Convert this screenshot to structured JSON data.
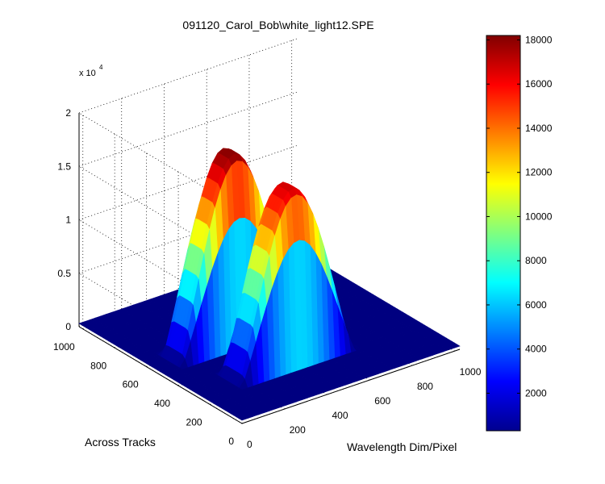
{
  "chart_data": {
    "type": "surface3d",
    "title": "091120_Carol_Bob\\white_light12.SPE",
    "xlabel": "Wavelength Dim/Pixel",
    "ylabel": "Across Tracks",
    "zlabel": "",
    "z_multiplier_label": "x 10",
    "z_multiplier_exp": "4",
    "xlim": [
      0,
      1024
    ],
    "ylim": [
      0,
      1024
    ],
    "zlim": [
      0,
      20000
    ],
    "x_ticks": [
      "0",
      "200",
      "400",
      "600",
      "800",
      "1000"
    ],
    "y_ticks": [
      "0",
      "200",
      "400",
      "600",
      "800",
      "1000"
    ],
    "z_ticks": [
      "0",
      "0.5",
      "1",
      "1.5",
      "2"
    ],
    "grid": true,
    "colormap": "jet",
    "colorbar": {
      "range": [
        300,
        18200
      ],
      "ticks": [
        "2000",
        "4000",
        "6000",
        "8000",
        "10000",
        "12000",
        "14000",
        "16000",
        "18000"
      ]
    },
    "peaks": [
      {
        "y_center": 560,
        "x_center": 360,
        "height": 17800,
        "y_half_width": 75,
        "x_sigma": 200
      },
      {
        "y_center": 290,
        "x_center": 430,
        "height": 16500,
        "y_half_width": 80,
        "x_sigma": 195
      }
    ],
    "baseline": 300
  },
  "colors": {
    "jet_low": "#00008F",
    "jet_high": "#800000",
    "axes": "#000000",
    "grid": "#000000"
  }
}
